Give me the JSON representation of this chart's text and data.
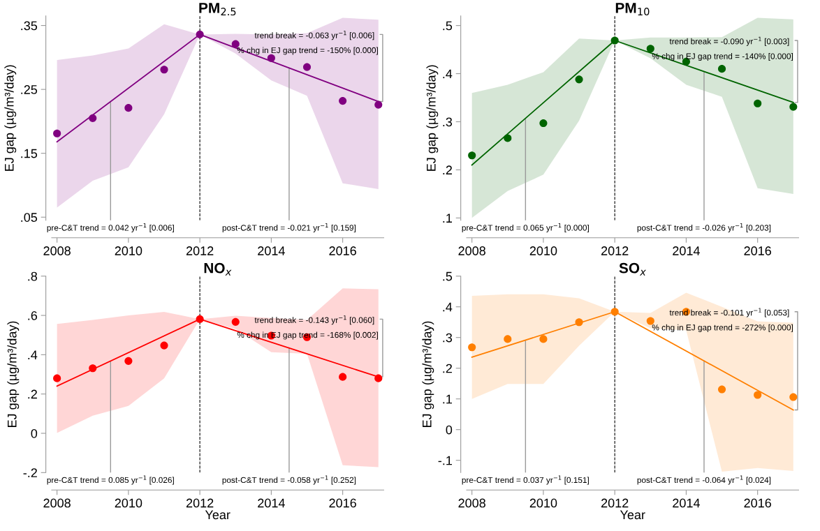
{
  "chart_data": [
    {
      "type": "scatter",
      "title": "PM$_{2.5}$",
      "ylabel": "EJ gap (µg/m³/day)",
      "x": [
        2008,
        2009,
        2010,
        2011,
        2012,
        2013,
        2014,
        2015,
        2016,
        2017
      ],
      "xlim": [
        2007.85,
        2017.15
      ],
      "xticks": [
        2008,
        2010,
        2012,
        2014,
        2016
      ],
      "ylim": [
        0.045,
        0.365
      ],
      "yticks": [
        {
          "value": 0.05,
          "label": ".05"
        },
        {
          "value": 0.15,
          "label": ".15"
        },
        {
          "value": 0.25,
          "label": ".25"
        },
        {
          "value": 0.35,
          "label": ".35"
        }
      ],
      "series": [
        {
          "marker": "circle",
          "color": "#800080",
          "values": [
            0.181,
            0.205,
            0.221,
            0.281,
            0.336,
            0.321,
            0.299,
            0.285,
            0.232,
            0.226
          ],
          "lower": [
            0.065,
            0.107,
            0.128,
            0.211,
            0.336,
            0.306,
            0.264,
            0.24,
            0.103,
            0.094
          ],
          "upper": [
            0.296,
            0.303,
            0.314,
            0.352,
            0.336,
            0.337,
            0.336,
            0.338,
            0.362,
            0.359
          ]
        },
        {
          "type": "line",
          "color": "#800080",
          "x": [
            2008,
            2012,
            2017
          ],
          "values": [
            0.168,
            0.336,
            0.231
          ]
        }
      ],
      "ref_lines": [
        {
          "axis": "x",
          "value": 2012,
          "color": "#000000",
          "line_style": "dashed"
        }
      ],
      "annotations": [
        {
          "text": "pre-C&T trend = 0.042 yr$^{−1}$ [0.006]",
          "x": 2009.5,
          "y": 0.231
        },
        {
          "text": "post-C&T trend = -0.021 yr$^{−1}$ [0.159]",
          "x": 2014.5,
          "y": 0.2835
        },
        {
          "text": "trend break = -0.063 yr$^{−1}$ [0.006]",
          "x": 2017,
          "y": 0.231
        },
        "% chg in EJ gap trend = -150% [0.000]"
      ]
    },
    {
      "type": "scatter",
      "title": "PM$_{10}$",
      "ylabel": "EJ gap (µg/m³/day)",
      "x": [
        2008,
        2009,
        2010,
        2011,
        2012,
        2013,
        2014,
        2015,
        2016,
        2017
      ],
      "xlim": [
        2007.85,
        2017.15
      ],
      "xticks": [
        2008,
        2010,
        2012,
        2014,
        2016
      ],
      "ylim": [
        0.095,
        0.52
      ],
      "yticks": [
        {
          "value": 0.1,
          "label": ".1"
        },
        {
          "value": 0.2,
          "label": ".2"
        },
        {
          "value": 0.3,
          "label": ".3"
        },
        {
          "value": 0.4,
          "label": ".4"
        },
        {
          "value": 0.5,
          "label": ".5"
        }
      ],
      "series": [
        {
          "marker": "circle",
          "color": "#006400",
          "values": [
            0.23,
            0.266,
            0.297,
            0.388,
            0.469,
            0.452,
            0.425,
            0.41,
            0.338,
            0.331
          ],
          "lower": [
            0.1,
            0.156,
            0.19,
            0.302,
            0.469,
            0.432,
            0.377,
            0.352,
            0.162,
            0.15
          ],
          "upper": [
            0.36,
            0.377,
            0.403,
            0.473,
            0.469,
            0.475,
            0.475,
            0.476,
            0.516,
            0.513
          ]
        },
        {
          "type": "line",
          "color": "#006400",
          "x": [
            2008,
            2012,
            2017
          ],
          "values": [
            0.21,
            0.469,
            0.34
          ]
        }
      ],
      "ref_lines": [
        {
          "axis": "x",
          "value": 2012,
          "color": "#000000",
          "line_style": "dashed"
        }
      ],
      "annotations": [
        {
          "text": "pre-C&T trend = 0.065 yr$^{−1}$ [0.000]",
          "x": 2009.5,
          "y": 0.306
        },
        {
          "text": "post-C&T trend = -0.026 yr$^{−1}$ [0.203]",
          "x": 2014.5,
          "y": 0.404
        },
        {
          "text": "trend break = -0.090 yr$^{−1}$ [0.003]",
          "x": 2017,
          "y": 0.34
        },
        "% chg in EJ gap trend = -140% [0.000]"
      ]
    },
    {
      "type": "scatter",
      "title": "NO$_{x}$",
      "xlabel": "Year",
      "ylabel": "EJ gap (µg/m³/day)",
      "x": [
        2008,
        2009,
        2010,
        2011,
        2012,
        2013,
        2014,
        2015,
        2016,
        2017
      ],
      "xlim": [
        2007.85,
        2017.15
      ],
      "xticks": [
        2008,
        2010,
        2012,
        2014,
        2016
      ],
      "ylim": [
        -0.2,
        0.8
      ],
      "yticks": [
        {
          "value": -0.2,
          "label": "-.2"
        },
        0,
        {
          "value": 0.2,
          "label": ".2"
        },
        {
          "value": 0.4,
          "label": ".4"
        },
        {
          "value": 0.6,
          "label": ".6"
        },
        {
          "value": 0.8,
          "label": ".8"
        }
      ],
      "series": [
        {
          "marker": "circle",
          "color": "#ff0000",
          "values": [
            0.28,
            0.331,
            0.368,
            0.447,
            0.581,
            0.567,
            0.497,
            0.489,
            0.287,
            0.28
          ],
          "lower": [
            0.002,
            0.09,
            0.139,
            0.28,
            0.581,
            0.531,
            0.413,
            0.405,
            -0.163,
            -0.172
          ],
          "upper": [
            0.557,
            0.577,
            0.6,
            0.618,
            0.581,
            0.598,
            0.587,
            0.577,
            0.738,
            0.733
          ]
        },
        {
          "type": "line",
          "color": "#ff0000",
          "x": [
            2008,
            2012,
            2017
          ],
          "values": [
            0.24,
            0.581,
            0.287
          ]
        }
      ],
      "ref_lines": [
        {
          "axis": "x",
          "value": 2012,
          "color": "#000000",
          "line_style": "dashed"
        }
      ],
      "annotations": [
        {
          "text": "pre-C&T trend = 0.085 yr$^{−1}$ [0.026]",
          "x": 2009.5,
          "y": 0.365
        },
        {
          "text": "post-C&T trend = -0.058 yr$^{−1}$ [0.252]",
          "x": 2014.5,
          "y": 0.435
        },
        {
          "text": "trend break = -0.143 yr$^{−1}$ [0.060]",
          "x": 2017,
          "y": 0.287
        },
        "% chg in EJ gap trend = -168% [0.002]"
      ]
    },
    {
      "type": "scatter",
      "title": "SO$_{x}$",
      "xlabel": "Year",
      "ylabel": "EJ gap (µg/m³/day)",
      "x": [
        2008,
        2009,
        2010,
        2011,
        2012,
        2013,
        2014,
        2015,
        2016,
        2017
      ],
      "xlim": [
        2007.85,
        2017.15
      ],
      "xticks": [
        2008,
        2010,
        2012,
        2014,
        2016
      ],
      "ylim": [
        -0.14,
        0.5
      ],
      "yticks": [
        {
          "value": -0.1,
          "label": "-.1"
        },
        0,
        {
          "value": 0.1,
          "label": ".1"
        },
        {
          "value": 0.2,
          "label": ".2"
        },
        {
          "value": 0.3,
          "label": ".3"
        },
        {
          "value": 0.4,
          "label": ".4"
        },
        {
          "value": 0.5,
          "label": ".5"
        }
      ],
      "series": [
        {
          "marker": "circle",
          "color": "#ff7f00",
          "values": [
            0.268,
            0.295,
            0.295,
            0.35,
            0.384,
            0.354,
            0.384,
            0.131,
            0.113,
            0.106
          ],
          "lower": [
            0.1,
            0.149,
            0.149,
            0.273,
            0.384,
            0.33,
            0.323,
            -0.137,
            -0.125,
            -0.135
          ],
          "upper": [
            0.436,
            0.441,
            0.441,
            0.428,
            0.384,
            0.38,
            0.446,
            0.4,
            0.353,
            0.348
          ]
        },
        {
          "type": "line",
          "color": "#ff7f00",
          "x": [
            2008,
            2012,
            2017
          ],
          "values": [
            0.236,
            0.384,
            0.064
          ]
        }
      ],
      "ref_lines": [
        {
          "axis": "x",
          "value": 2012,
          "color": "#000000",
          "line_style": "dashed"
        }
      ],
      "annotations": [
        {
          "text": "pre-C&T trend = 0.037 yr$^{−1}$ [0.151]",
          "x": 2009.5,
          "y": 0.291
        },
        {
          "text": "post-C&T trend = -0.064 yr$^{−1}$ [0.024]",
          "x": 2014.5,
          "y": 0.224
        },
        {
          "text": "trend break = -0.101 yr$^{−1}$ [0.053]",
          "x": 2017,
          "y": 0.064
        },
        "% chg in EJ gap trend = -272% [0.000]"
      ]
    }
  ]
}
